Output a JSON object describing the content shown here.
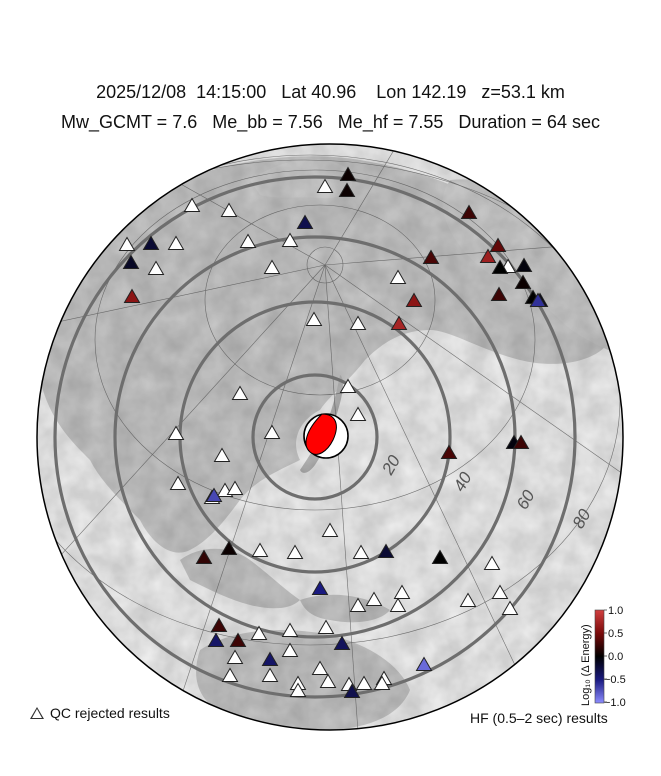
{
  "header": {
    "line1": "2025/12/08  14:15:00   Lat 40.96    Lon 142.19   z=53.1 km",
    "line2": "Mw_GCMT = 7.6   Me_bb = 7.56   Me_hf = 7.55   Duration = 64 sec"
  },
  "map": {
    "distance_rings": [
      {
        "label": "20",
        "deg": 20
      },
      {
        "label": "40",
        "deg": 40
      },
      {
        "label": "60",
        "deg": 60
      },
      {
        "label": "80",
        "deg": 80
      }
    ],
    "colors": {
      "ring": "#6e6e6e",
      "land": "#c8c8c8",
      "ocean": "#f2f2f2",
      "beachball": "#ff0000"
    }
  },
  "colorbar": {
    "title": "Log₁₀ (Δ Energy)",
    "ticks": [
      "1.0",
      "0.5",
      "0.0",
      "−0.5",
      "−1.0"
    ],
    "stops": [
      "#d24040",
      "#7a0a0a",
      "#000000",
      "#1a1a80",
      "#8c8cff"
    ]
  },
  "legend": {
    "qc_note": "QC rejected results",
    "hf_note": "HF (0.5–2 sec) results"
  },
  "stations": [
    {
      "v": null
    },
    {
      "v": 0.05
    },
    {
      "v": 0.05
    },
    {
      "v": null
    },
    {
      "v": null
    },
    {
      "v": -0.3
    },
    {
      "v": 0.25
    },
    {
      "v": null
    },
    {
      "v": null
    },
    {
      "v": -0.2
    },
    {
      "v": null
    },
    {
      "v": null
    },
    {
      "v": -0.15
    },
    {
      "v": null
    },
    {
      "v": null
    },
    {
      "v": 0.6
    },
    {
      "v": null
    },
    {
      "v": null
    },
    {
      "v": null
    },
    {
      "v": 0.7
    },
    {
      "v": 0.4
    },
    {
      "v": null
    },
    {
      "v": 0.3
    },
    {
      "v": 0.0
    },
    {
      "v": 0.05
    },
    {
      "v": 0.0
    },
    {
      "v": -0.1
    },
    {
      "v": 0.25
    },
    {
      "v": -0.05
    },
    {
      "v": -0.6
    },
    {
      "v": 0.6
    },
    {
      "v": 0.75
    },
    {
      "v": null
    },
    {
      "v": null
    },
    {
      "v": null
    },
    {
      "v": null
    },
    {
      "v": null
    },
    {
      "v": null
    },
    {
      "v": null
    },
    {
      "v": 0.3
    },
    {
      "v": -0.05
    },
    {
      "v": 0.25
    },
    {
      "v": null
    },
    {
      "v": null
    },
    {
      "v": null
    },
    {
      "v": -0.7
    },
    {
      "v": null
    },
    {
      "v": 0.2
    },
    {
      "v": 0.05
    },
    {
      "v": null
    },
    {
      "v": null
    },
    {
      "v": null
    },
    {
      "v": -0.2
    },
    {
      "v": 0.0
    },
    {
      "v": null
    },
    {
      "v": null
    },
    {
      "v": -0.5
    },
    {
      "v": null
    },
    {
      "v": null
    },
    {
      "v": null
    },
    {
      "v": null
    },
    {
      "v": null
    },
    {
      "v": null
    },
    {
      "v": -0.4
    },
    {
      "v": 0.25
    },
    {
      "v": 0.25
    },
    {
      "v": null
    },
    {
      "v": null
    },
    {
      "v": null
    },
    {
      "v": -0.35
    },
    {
      "v": null
    },
    {
      "v": null
    },
    {
      "v": -0.4
    },
    {
      "v": null
    },
    {
      "v": null
    },
    {
      "v": null
    },
    {
      "v": -0.85
    },
    {
      "v": null
    },
    {
      "v": null
    },
    {
      "v": null
    },
    {
      "v": null
    },
    {
      "v": null
    },
    {
      "v": -0.3
    },
    {
      "v": null
    },
    {
      "v": null
    }
  ]
}
